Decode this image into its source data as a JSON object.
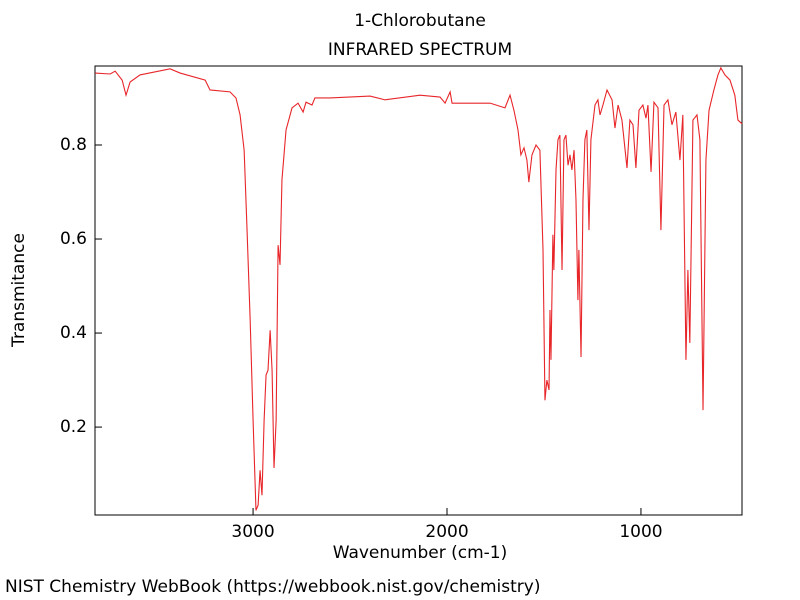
{
  "chart_data": {
    "type": "line",
    "title": "1-Chlorobutane",
    "subtitle": "INFRARED SPECTRUM",
    "x_label": "Wavenumber (cm-1)",
    "y_label": "Transmitance",
    "source": "NIST Chemistry WebBook (https://webbook.nist.gov/chemistry)",
    "xlim": [
      3815,
      479
    ],
    "ylim": [
      0.013,
      0.968
    ],
    "xticks": [
      3000,
      2000,
      1000
    ],
    "yticks": [
      0.2,
      0.4,
      0.6,
      0.8
    ],
    "x": [
      3814,
      3737,
      3711,
      3675,
      3655,
      3634,
      3583,
      3428,
      3376,
      3247,
      3222,
      3119,
      3088,
      3067,
      3046,
      3031,
      3015,
      3000,
      2985,
      2974,
      2964,
      2954,
      2943,
      2933,
      2923,
      2912,
      2902,
      2892,
      2881,
      2871,
      2861,
      2851,
      2830,
      2799,
      2768,
      2742,
      2727,
      2696,
      2681,
      2603,
      2397,
      2320,
      2139,
      2036,
      2010,
      1984,
      1974,
      1881,
      1778,
      1701,
      1675,
      1655,
      1634,
      1619,
      1603,
      1588,
      1578,
      1562,
      1541,
      1521,
      1505,
      1495,
      1485,
      1474,
      1469,
      1464,
      1454,
      1449,
      1438,
      1428,
      1418,
      1407,
      1397,
      1387,
      1376,
      1366,
      1356,
      1345,
      1335,
      1325,
      1320,
      1309,
      1299,
      1289,
      1279,
      1268,
      1258,
      1237,
      1222,
      1211,
      1196,
      1175,
      1149,
      1134,
      1118,
      1098,
      1072,
      1057,
      1041,
      1026,
      1010,
      990,
      974,
      964,
      948,
      933,
      912,
      897,
      881,
      861,
      840,
      820,
      799,
      784,
      768,
      758,
      748,
      732,
      711,
      696,
      680,
      665,
      649,
      624,
      603,
      588,
      567,
      541,
      516,
      500,
      479
    ],
    "series": [
      {
        "name": "1-Chlorobutane",
        "color": "#e8262a",
        "values": [
          0.953,
          0.951,
          0.957,
          0.938,
          0.906,
          0.934,
          0.949,
          0.962,
          0.953,
          0.938,
          0.917,
          0.913,
          0.9,
          0.864,
          0.789,
          0.619,
          0.428,
          0.215,
          0.023,
          0.034,
          0.108,
          0.055,
          0.215,
          0.311,
          0.321,
          0.406,
          0.321,
          0.113,
          0.215,
          0.587,
          0.545,
          0.726,
          0.832,
          0.879,
          0.889,
          0.87,
          0.891,
          0.885,
          0.9,
          0.9,
          0.904,
          0.896,
          0.906,
          0.902,
          0.889,
          0.913,
          0.889,
          0.889,
          0.889,
          0.879,
          0.906,
          0.874,
          0.832,
          0.779,
          0.794,
          0.768,
          0.721,
          0.779,
          0.8,
          0.789,
          0.577,
          0.257,
          0.3,
          0.279,
          0.449,
          0.343,
          0.609,
          0.534,
          0.747,
          0.811,
          0.821,
          0.534,
          0.811,
          0.821,
          0.757,
          0.779,
          0.747,
          0.789,
          0.683,
          0.47,
          0.577,
          0.349,
          0.683,
          0.811,
          0.832,
          0.619,
          0.811,
          0.885,
          0.896,
          0.864,
          0.885,
          0.917,
          0.896,
          0.836,
          0.885,
          0.853,
          0.751,
          0.853,
          0.843,
          0.751,
          0.874,
          0.885,
          0.857,
          0.885,
          0.743,
          0.891,
          0.879,
          0.619,
          0.885,
          0.896,
          0.843,
          0.87,
          0.768,
          0.864,
          0.343,
          0.534,
          0.379,
          0.853,
          0.864,
          0.811,
          0.236,
          0.768,
          0.874,
          0.917,
          0.949,
          0.964,
          0.949,
          0.938,
          0.906,
          0.853,
          0.845
        ]
      }
    ]
  }
}
